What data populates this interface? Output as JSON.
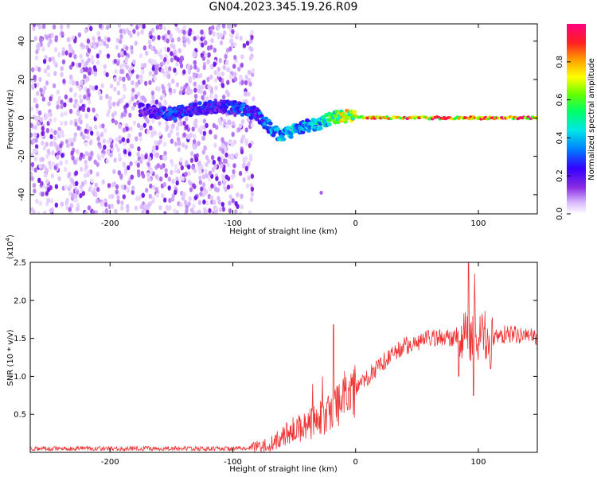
{
  "title": "GN04.2023.345.19.26.R09",
  "colors": {
    "snr_line": "#ee3333",
    "colormap": [
      "#ffffff",
      "#d9b8ff",
      "#8a2be2",
      "#3300ff",
      "#0080ff",
      "#00e6e6",
      "#00ff66",
      "#66ff00",
      "#ffff00",
      "#ffa000",
      "#ff2020",
      "#ff0080"
    ]
  },
  "chart_data": [
    {
      "type": "heatmap",
      "xlabel": "Height of straight line (km)",
      "ylabel": "Frequency (Hz)",
      "xlim": [
        -265,
        148
      ],
      "ylim": [
        -50,
        49
      ],
      "xticks": [
        -200,
        -100,
        0,
        100
      ],
      "yticks": [
        -40,
        -20,
        0,
        20,
        40
      ],
      "colorbar": {
        "label": "Normalized spectral amplitude",
        "range": [
          0.0,
          1.0
        ],
        "ticks": [
          "0.0",
          "0.2",
          "0.4",
          "0.6",
          "0.8"
        ]
      },
      "features": {
        "noise_region_km": [
          -265,
          -83
        ],
        "signal_trace": [
          {
            "x": -175,
            "y": 4,
            "amp": 0.25
          },
          {
            "x": -150,
            "y": 2,
            "amp": 0.35
          },
          {
            "x": -130,
            "y": 5,
            "amp": 0.3
          },
          {
            "x": -110,
            "y": 6,
            "amp": 0.3
          },
          {
            "x": -95,
            "y": 5,
            "amp": 0.35
          },
          {
            "x": -80,
            "y": 2,
            "amp": 0.35
          },
          {
            "x": -70,
            "y": -5,
            "amp": 0.4
          },
          {
            "x": -60,
            "y": -10,
            "amp": 0.45
          },
          {
            "x": -50,
            "y": -6,
            "amp": 0.45
          },
          {
            "x": -40,
            "y": -4,
            "amp": 0.45
          },
          {
            "x": -30,
            "y": -3,
            "amp": 0.5
          },
          {
            "x": -20,
            "y": 0,
            "amp": 0.6
          },
          {
            "x": -10,
            "y": 1,
            "amp": 0.75
          },
          {
            "x": 0,
            "y": 1,
            "amp": 0.8
          },
          {
            "x": 10,
            "y": 0,
            "amp": 0.9
          },
          {
            "x": 148,
            "y": 0,
            "amp": 0.95
          }
        ],
        "isolated_blob": {
          "x": -28,
          "y": -39,
          "amp": 0.15
        }
      }
    },
    {
      "type": "line",
      "xlabel": "Height of straight line (km)",
      "ylabel": "SNR (10 * v/v)",
      "multiplier_label": "(x10",
      "multiplier_exp": "4",
      "multiplier_close": ")",
      "xlim": [
        -265,
        148
      ],
      "ylim": [
        0,
        2.5
      ],
      "xticks": [
        -200,
        -100,
        0,
        100
      ],
      "yticks": [
        "0.5",
        "1.0",
        "1.5",
        "2.0",
        "2.5"
      ],
      "trend": {
        "x": [
          -265,
          -100,
          -85,
          -70,
          -60,
          -50,
          -40,
          -30,
          -20,
          -10,
          0,
          10,
          20,
          30,
          40,
          50,
          60,
          70,
          80,
          90,
          100,
          110,
          120,
          130,
          148
        ],
        "y": [
          0.05,
          0.05,
          0.06,
          0.1,
          0.2,
          0.3,
          0.35,
          0.42,
          0.55,
          0.7,
          0.85,
          1.0,
          1.15,
          1.3,
          1.4,
          1.45,
          1.5,
          1.5,
          1.52,
          1.55,
          1.55,
          1.5,
          1.55,
          1.55,
          1.5
        ]
      },
      "spikes": [
        {
          "x": -18,
          "y": 1.68
        },
        {
          "x": -27,
          "y": 1.0
        },
        {
          "x": -35,
          "y": 0.9
        },
        {
          "x": 92,
          "y": 2.5
        },
        {
          "x": 97,
          "y": 2.35
        },
        {
          "x": 96,
          "y": 0.75
        },
        {
          "x": 84,
          "y": 1.0
        },
        {
          "x": 103,
          "y": 1.82
        },
        {
          "x": 110,
          "y": 1.1
        }
      ]
    }
  ]
}
